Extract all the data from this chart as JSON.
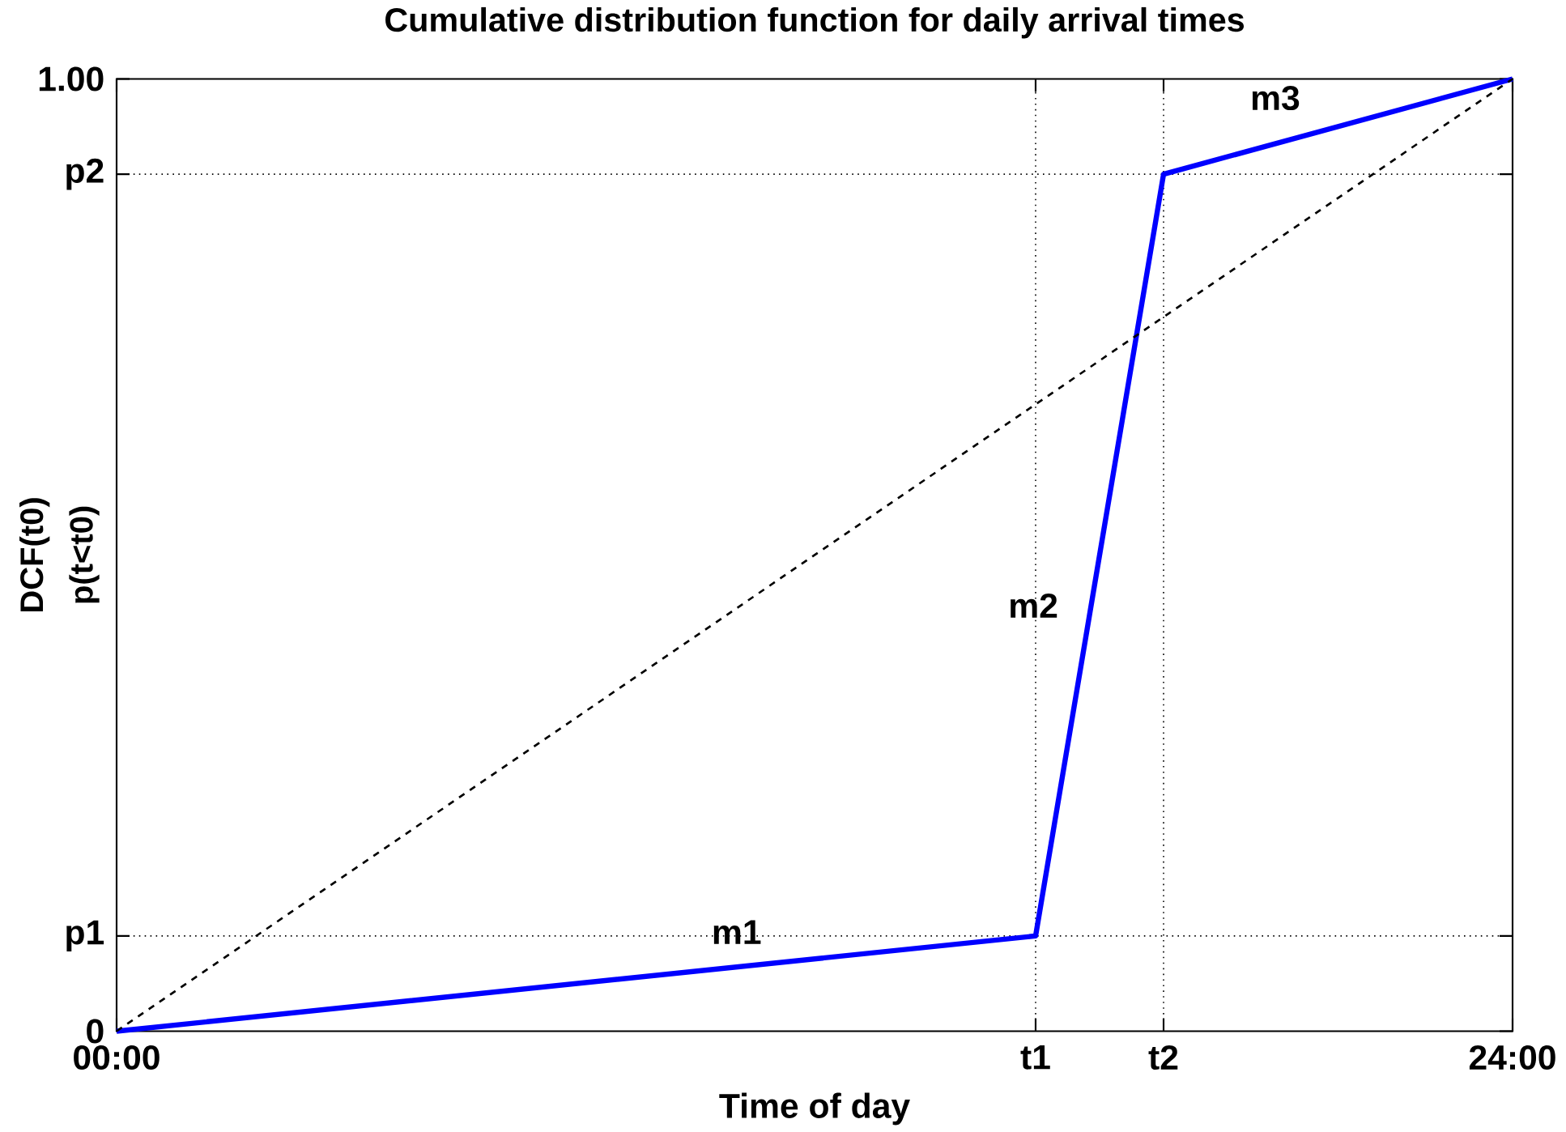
{
  "chart_data": {
    "type": "line",
    "title": "Cumulative distribution function for daily arrival times",
    "xlabel": "Time of day",
    "ylabel": "DCF(t0)",
    "series": [
      {
        "color": "#0000ff",
        "line_style": "solid",
        "x": [
          0,
          15.8,
          18,
          24
        ],
        "values": [
          0,
          0.1,
          0.9,
          1
        ]
      },
      {
        "color": "#000000",
        "line_style": "dashed",
        "x": [
          0,
          24
        ],
        "values": [
          0,
          1
        ]
      }
    ],
    "xlim": [
      0,
      24
    ],
    "ylim": [
      0,
      1
    ],
    "xticks": [
      {
        "value": 0,
        "label": "00:00"
      },
      {
        "value": 15.8,
        "label": "t1"
      },
      {
        "value": 18,
        "label": "t2"
      },
      {
        "value": 24,
        "label": "24:00"
      }
    ],
    "yticks": [
      0,
      {
        "value": 0.1,
        "label": "p1"
      },
      {
        "value": 0.9,
        "label": "p2"
      },
      {
        "value": 1,
        "label": "1.00"
      }
    ],
    "ref_lines": [
      {
        "axis": "x",
        "value": 15.8,
        "color": "#000000",
        "line_style": "dotted"
      },
      {
        "axis": "x",
        "value": 18,
        "color": "#000000",
        "line_style": "dotted"
      },
      {
        "axis": "y",
        "value": 0.1,
        "color": "#000000",
        "line_style": "dotted"
      },
      {
        "axis": "y",
        "value": 0.9,
        "color": "#000000",
        "line_style": "dotted"
      }
    ],
    "annotations": [
      "p(t<t0)",
      {
        "text": "m1",
        "x": 10.66,
        "y": 0.104
      },
      {
        "text": "m2",
        "x": 15.76,
        "y": 0.447
      },
      "m3"
    ],
    "grid": false,
    "marker": "none"
  }
}
